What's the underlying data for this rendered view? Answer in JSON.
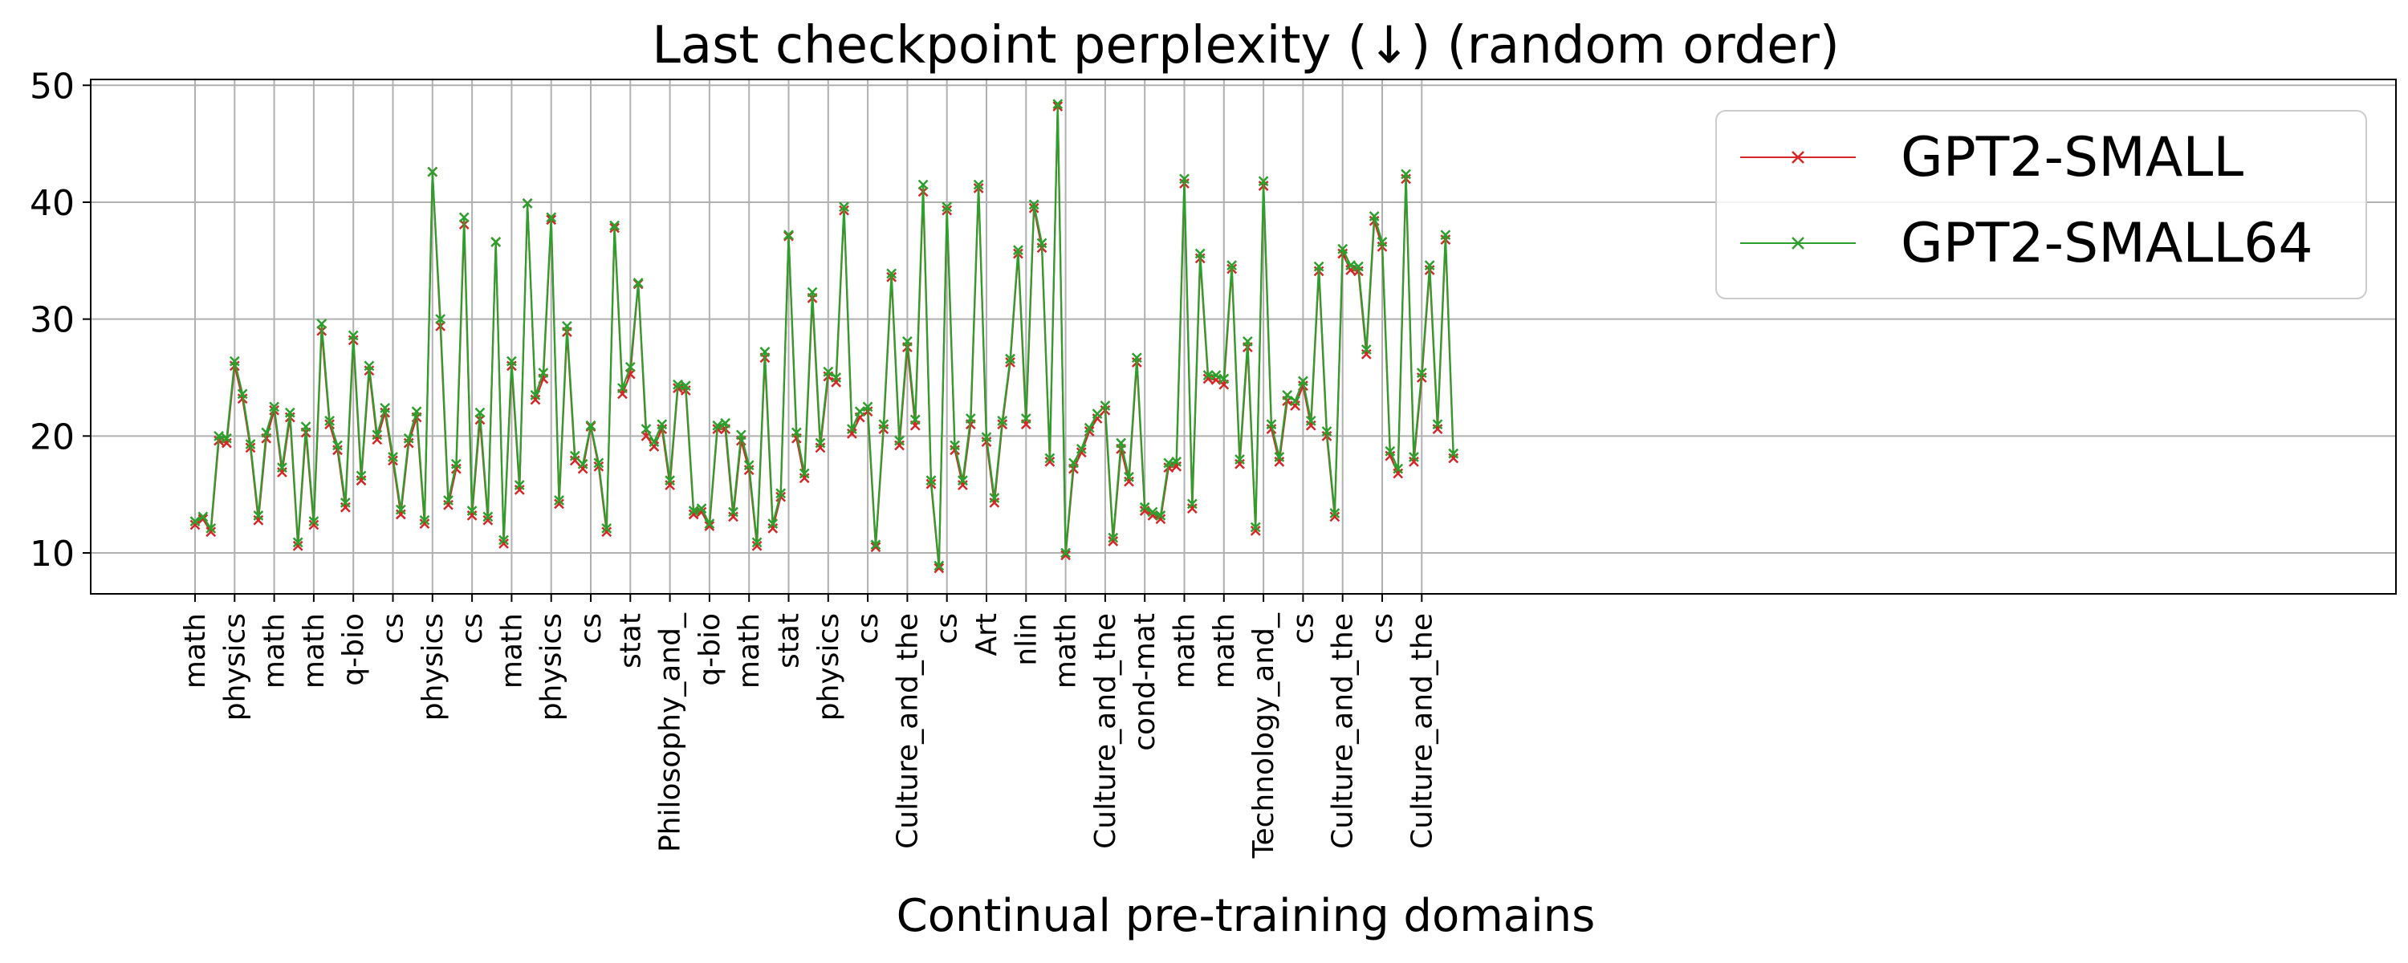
{
  "chart_data": {
    "type": "line",
    "title": "Last checkpoint perplexity (↓) (random order)",
    "xlabel": "Continual pre-training domains",
    "ylabel": "",
    "ylim": [
      6.5,
      50.5
    ],
    "yticks": [
      10,
      20,
      30,
      40,
      50
    ],
    "grid": true,
    "legend_position": "top-right",
    "tick_labels": [
      "math",
      "physics",
      "math",
      "math",
      "q-bio",
      "cs",
      "physics",
      "cs",
      "math",
      "physics",
      "cs",
      "stat",
      "Philosophy_and_",
      "q-bio",
      "math",
      "stat",
      "physics",
      "cs",
      "Culture_and_the",
      "cs",
      "Art",
      "nlin",
      "math",
      "Culture_and_the",
      "cond-mat",
      "math",
      "math",
      "Technology_and_",
      "cs",
      "Culture_and_the",
      "cs",
      "Culture_and_the"
    ],
    "x": [
      0,
      1,
      2,
      3,
      4,
      5,
      6,
      7,
      8,
      9,
      10,
      11,
      12,
      13,
      14,
      15,
      16,
      17,
      18,
      19,
      20,
      21,
      22,
      23,
      24,
      25,
      26,
      27,
      28,
      29,
      30,
      31,
      32,
      33,
      34,
      35,
      36,
      37,
      38,
      39,
      40,
      41,
      42,
      43,
      44,
      45,
      46,
      47,
      48,
      49,
      50,
      51,
      52,
      53,
      54,
      55,
      56,
      57,
      58,
      59,
      60,
      61,
      62,
      63,
      64,
      65,
      66,
      67,
      68,
      69,
      70,
      71,
      72,
      73,
      74,
      75,
      76,
      77,
      78,
      79,
      80,
      81,
      82,
      83,
      84,
      85,
      86,
      87,
      88,
      89,
      90,
      91,
      92,
      93,
      94,
      95,
      96,
      97,
      98,
      99,
      100,
      101,
      102,
      103,
      104,
      105,
      106,
      107,
      108,
      109,
      110,
      111,
      112,
      113,
      114,
      115,
      116,
      117,
      118,
      119,
      120,
      121,
      122,
      123,
      124,
      125,
      126,
      127,
      128,
      129,
      130,
      131,
      132,
      133,
      134,
      135,
      136,
      137,
      138,
      139,
      140,
      141,
      142,
      143,
      144,
      145,
      146,
      147,
      148,
      149,
      150,
      151,
      152,
      153,
      154,
      155,
      156,
      157,
      158,
      159
    ],
    "series": [
      {
        "name": "GPT2-SMALL",
        "color": "#d62728",
        "values": [
          12.4,
          12.9,
          11.8,
          19.6,
          19.4,
          26.0,
          23.2,
          19.0,
          12.8,
          19.8,
          22.2,
          16.9,
          21.6,
          10.6,
          20.3,
          12.4,
          29.0,
          21.0,
          18.8,
          13.9,
          28.2,
          16.2,
          25.6,
          19.7,
          22.0,
          17.9,
          13.3,
          19.4,
          21.6,
          12.5,
          42.6,
          29.4,
          14.1,
          17.2,
          38.1,
          13.2,
          21.4,
          12.8,
          36.6,
          10.8,
          26.0,
          15.4,
          39.9,
          23.1,
          24.9,
          38.5,
          14.2,
          28.9,
          17.9,
          17.2,
          20.8,
          17.4,
          11.8,
          37.8,
          23.6,
          25.3,
          33.0,
          20.0,
          19.1,
          20.6,
          15.8,
          24.1,
          23.9,
          13.3,
          13.5,
          12.3,
          20.6,
          20.6,
          13.1,
          19.6,
          17.1,
          10.6,
          26.7,
          12.1,
          14.8,
          37.1,
          19.8,
          16.4,
          31.8,
          19.0,
          25.1,
          24.6,
          39.3,
          20.2,
          21.6,
          22.1,
          10.5,
          20.6,
          33.6,
          19.2,
          27.6,
          20.9,
          40.9,
          15.9,
          8.7,
          39.3,
          18.8,
          15.8,
          21.0,
          41.2,
          19.5,
          14.3,
          21.0,
          26.3,
          35.6,
          21.0,
          39.5,
          36.1,
          17.8,
          48.2,
          9.8,
          17.2,
          18.6,
          20.4,
          21.5,
          22.2,
          11.0,
          18.9,
          16.1,
          26.3,
          13.6,
          13.2,
          12.9,
          17.3,
          17.4,
          41.6,
          13.8,
          35.2,
          24.9,
          24.8,
          24.4,
          34.3,
          17.6,
          27.6,
          11.9,
          41.4,
          20.6,
          17.8,
          23.0,
          22.6,
          24.3,
          20.9,
          34.1,
          20.0,
          13.1,
          35.6,
          34.2,
          34.1,
          27.0,
          38.4,
          36.2,
          18.3,
          16.8,
          42.0,
          17.8,
          25.0,
          34.2,
          20.6,
          36.8,
          18.1
        ]
      },
      {
        "name": "GPT2-SMALL64",
        "color": "#2ca02c",
        "values": [
          12.7,
          13.1,
          12.1,
          20.0,
          19.8,
          26.4,
          23.6,
          19.3,
          13.2,
          20.3,
          22.5,
          17.3,
          22.0,
          10.9,
          20.8,
          12.7,
          29.6,
          21.3,
          19.2,
          14.3,
          28.6,
          16.6,
          26.0,
          20.1,
          22.4,
          18.2,
          13.7,
          19.8,
          22.1,
          12.8,
          42.6,
          30.0,
          14.5,
          17.6,
          38.7,
          13.6,
          22.0,
          13.1,
          36.6,
          11.1,
          26.4,
          15.8,
          39.9,
          23.5,
          25.4,
          38.7,
          14.5,
          29.4,
          18.3,
          17.6,
          20.9,
          17.7,
          12.1,
          38.0,
          24.1,
          25.9,
          33.1,
          20.6,
          19.5,
          21.0,
          16.2,
          24.4,
          24.3,
          13.6,
          13.8,
          12.5,
          20.9,
          21.1,
          13.5,
          20.1,
          17.5,
          10.9,
          27.2,
          12.5,
          15.1,
          37.2,
          20.3,
          16.8,
          32.3,
          19.4,
          25.5,
          25.0,
          39.6,
          20.6,
          22.1,
          22.5,
          10.7,
          21.0,
          33.9,
          19.6,
          28.1,
          21.4,
          41.5,
          16.2,
          8.9,
          39.6,
          19.2,
          16.2,
          21.5,
          41.5,
          19.9,
          14.7,
          21.3,
          26.6,
          35.9,
          21.5,
          39.8,
          36.5,
          18.1,
          48.4,
          10.0,
          17.7,
          18.9,
          20.7,
          21.9,
          22.6,
          11.3,
          19.4,
          16.5,
          26.7,
          13.9,
          13.5,
          13.2,
          17.7,
          17.8,
          42.0,
          14.2,
          35.6,
          25.2,
          25.2,
          24.9,
          34.6,
          18.0,
          28.1,
          12.2,
          41.8,
          21.0,
          18.2,
          23.5,
          23.0,
          24.7,
          21.3,
          34.5,
          20.4,
          13.4,
          36.0,
          34.6,
          34.5,
          27.4,
          38.8,
          36.6,
          18.7,
          17.2,
          42.4,
          18.2,
          25.4,
          34.6,
          21.0,
          37.2,
          18.5
        ]
      }
    ]
  }
}
